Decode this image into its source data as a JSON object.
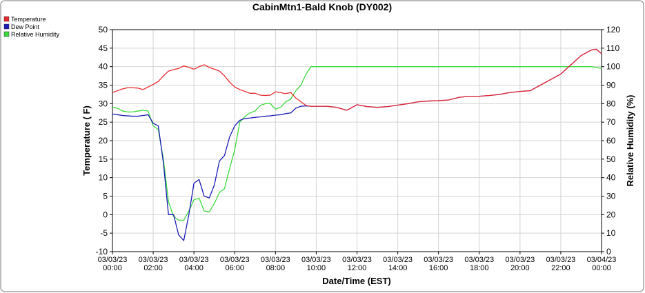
{
  "chart_data": {
    "type": "line",
    "title": "CabinMtn1-Bald Knob (DY002)",
    "xlabel": "Date/Time (EST)",
    "ylabel": "Temperature ( F)",
    "y2label": "Relative Humidity (%)",
    "x": [
      0,
      0.25,
      0.5,
      0.75,
      1,
      1.25,
      1.5,
      1.75,
      2,
      2.25,
      2.5,
      2.75,
      3,
      3.25,
      3.5,
      3.75,
      4,
      4.25,
      4.5,
      4.75,
      5,
      5.25,
      5.5,
      5.75,
      6,
      6.25,
      6.5,
      6.75,
      7,
      7.25,
      7.5,
      7.75,
      8,
      8.25,
      8.5,
      8.75,
      9,
      9.25,
      9.5,
      9.75,
      10,
      10.5,
      11,
      11.5,
      12,
      12.5,
      13,
      13.5,
      14,
      14.5,
      15,
      15.5,
      16,
      16.5,
      17,
      17.5,
      18,
      18.5,
      19,
      19.5,
      20,
      20.5,
      21,
      21.5,
      22,
      22.5,
      23,
      23.5,
      23.75,
      24
    ],
    "xlim": [
      0,
      24
    ],
    "xticks": [
      {
        "value": 0,
        "label": "03/03/23\n00:00"
      },
      {
        "value": 2,
        "label": "03/03/23\n02:00"
      },
      {
        "value": 4,
        "label": "03/03/23\n04:00"
      },
      {
        "value": 6,
        "label": "03/03/23\n06:00"
      },
      {
        "value": 8,
        "label": "03/03/23\n08:00"
      },
      {
        "value": 10,
        "label": "03/03/23\n10:00"
      },
      {
        "value": 12,
        "label": "03/03/23\n12:00"
      },
      {
        "value": 14,
        "label": "03/03/23\n14:00"
      },
      {
        "value": 16,
        "label": "03/03/23\n16:00"
      },
      {
        "value": 18,
        "label": "03/03/23\n18:00"
      },
      {
        "value": 20,
        "label": "03/03/23\n20:00"
      },
      {
        "value": 22,
        "label": "03/03/23\n22:00"
      },
      {
        "value": 24,
        "label": "03/04/23\n00:00"
      }
    ],
    "ylim": [
      -10,
      50
    ],
    "yticks": [
      -10,
      -5,
      0,
      5,
      10,
      15,
      20,
      25,
      30,
      35,
      40,
      45,
      50
    ],
    "y2lim": [
      0,
      120
    ],
    "y2ticks": [
      0,
      10,
      20,
      30,
      40,
      50,
      60,
      70,
      80,
      90,
      100,
      110,
      120
    ],
    "grid": true,
    "legend": "top-left",
    "series": [
      {
        "name": "Temperature",
        "color": "#e8282e",
        "values": [
          33,
          33.5,
          34,
          34.3,
          34.3,
          34.2,
          33.8,
          34.5,
          35.2,
          36,
          37.5,
          38.8,
          39.2,
          39.5,
          40.2,
          39.8,
          39.3,
          40,
          40.5,
          39.8,
          39.3,
          38.8,
          37.5,
          35.8,
          34.5,
          33.8,
          33.3,
          32.8,
          32.8,
          32.3,
          32.2,
          32.3,
          33.2,
          33,
          32.7,
          33,
          31.5,
          30.5,
          29.5,
          29.3,
          29.3,
          29.3,
          29.0,
          28.2,
          29.7,
          29.2,
          29.0,
          29.2,
          29.6,
          30.0,
          30.5,
          30.7,
          30.8,
          31.0,
          31.7,
          32.0,
          32.0,
          32.2,
          32.5,
          33.0,
          33.3,
          33.5,
          35.0,
          36.5,
          38.0,
          40.5,
          43.0,
          44.5,
          44.7,
          43.5
        ]
      },
      {
        "name": "Dew Point",
        "color": "#1a1ab8",
        "values": [
          27.2,
          27,
          26.8,
          26.7,
          26.6,
          26.6,
          26.8,
          27,
          24.7,
          24,
          14,
          0,
          0,
          -5.5,
          -7,
          0,
          8.5,
          9.5,
          5,
          4.5,
          8,
          14.5,
          16,
          21,
          24,
          25.5,
          26,
          26.1,
          26.3,
          26.4,
          26.6,
          26.7,
          26.9,
          27,
          27.3,
          27.5,
          28.8,
          29.3,
          29.4,
          29.3,
          29.3,
          29.3,
          29.0,
          28.2,
          29.7,
          29.2,
          29.0,
          29.2,
          29.6,
          30.0,
          30.5,
          30.7,
          30.8,
          31.0,
          31.7,
          32.0,
          32.0,
          32.2,
          32.5,
          33.0,
          33.3,
          33.5,
          35.0,
          36.5,
          38.0,
          40.5,
          43.0,
          44.5,
          44.7,
          43.5
        ]
      },
      {
        "name": "Relative Humidity",
        "color": "#3ad83a",
        "axis": "y2",
        "values": [
          78,
          77.5,
          76,
          75.5,
          75.5,
          76,
          76.5,
          76,
          68,
          66,
          50,
          27,
          19,
          17,
          17,
          22,
          28,
          29,
          22,
          21.5,
          26,
          32,
          34,
          45,
          55,
          70,
          73,
          75,
          76,
          79,
          80,
          80,
          77,
          78,
          81,
          82.5,
          87,
          90,
          96,
          100,
          100,
          100,
          100,
          100,
          100,
          100,
          100,
          100,
          100,
          100,
          100,
          100,
          100,
          100,
          100,
          100,
          100,
          100,
          100,
          100,
          100,
          100,
          100,
          100,
          100,
          100,
          100,
          100,
          99.5,
          99
        ]
      }
    ]
  }
}
